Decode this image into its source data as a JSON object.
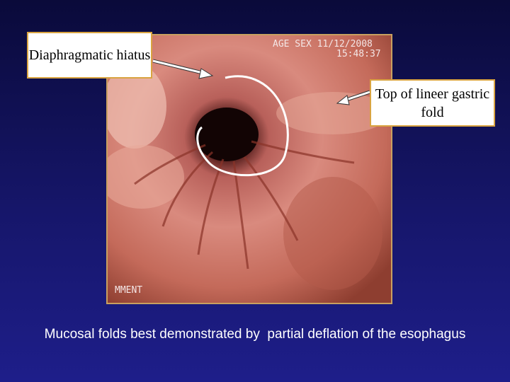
{
  "labels": {
    "hiatus": "Diaphragmatic hiatus",
    "gastric_fold": "Top of lineer gastric fold"
  },
  "image_overlay": {
    "line1": "AGE SEX 11/12/2008",
    "line2": "15:48:37",
    "corner": "MMENT"
  },
  "caption": "Mucosal folds best demonstrated by  partial deflation of the esophagus"
}
